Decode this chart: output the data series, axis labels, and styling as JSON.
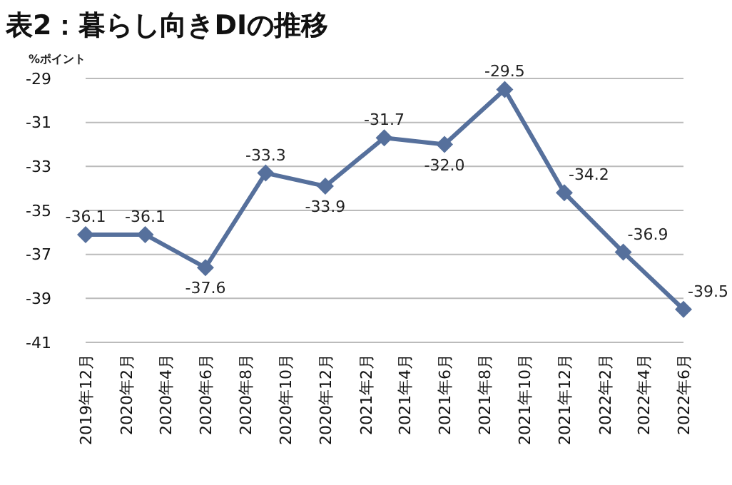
{
  "chart_data": {
    "type": "line",
    "title": "表2：暮らし向きDIの推移",
    "ylabel": "%ポイント",
    "x": [
      "2019-12",
      "2020-03",
      "2020-06",
      "2020-09",
      "2020-12",
      "2021-03",
      "2021-06",
      "2021-09",
      "2021-12",
      "2022-03",
      "2022-06"
    ],
    "series": [
      {
        "color": "#56709c",
        "values": [
          -36.1,
          -36.1,
          -37.6,
          -33.3,
          -33.9,
          -31.7,
          -32.0,
          -29.5,
          -34.2,
          -36.9,
          -39.5
        ],
        "value_labels": [
          "-36.1",
          "-36.1",
          "-37.6",
          "-33.3",
          "-33.9",
          "-31.7",
          "-32.0",
          "-29.5",
          "-34.2",
          "-36.9",
          "-39.5"
        ]
      }
    ],
    "xlim": [
      "2019-12",
      "2022-06"
    ],
    "xticks": [
      {
        "value": "2019-12",
        "label": "2019年12月"
      },
      {
        "value": "2020-02",
        "label": "2020年2月"
      },
      {
        "value": "2020-04",
        "label": "2020年4月"
      },
      {
        "value": "2020-06",
        "label": "2020年6月"
      },
      {
        "value": "2020-08",
        "label": "2020年8月"
      },
      {
        "value": "2020-10",
        "label": "2020年10月"
      },
      {
        "value": "2020-12",
        "label": "2020年12月"
      },
      {
        "value": "2021-02",
        "label": "2021年2月"
      },
      {
        "value": "2021-04",
        "label": "2021年4月"
      },
      {
        "value": "2021-06",
        "label": "2021年6月"
      },
      {
        "value": "2021-08",
        "label": "2021年8月"
      },
      {
        "value": "2021-10",
        "label": "2021年10月"
      },
      {
        "value": "2021-12",
        "label": "2021年12月"
      },
      {
        "value": "2022-02",
        "label": "2022年2月"
      },
      {
        "value": "2022-04",
        "label": "2022年4月"
      },
      {
        "value": "2022-06",
        "label": "2022年6月"
      }
    ],
    "ylim": [
      -41,
      -29
    ],
    "yticks": [
      -41,
      -39,
      -37,
      -35,
      -33,
      -31,
      -29
    ],
    "grid": "y",
    "marker": "diamond",
    "line_style": "solid"
  }
}
